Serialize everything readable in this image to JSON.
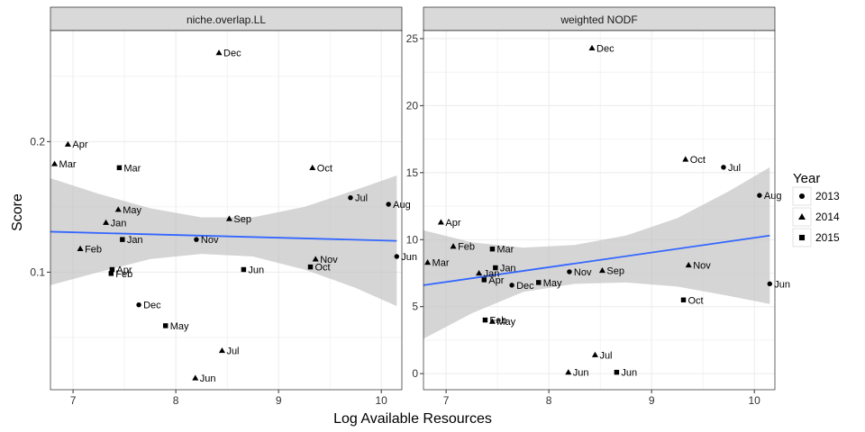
{
  "figure": {
    "xlabel": "Log Available Resources",
    "ylabel": "Score",
    "legend": {
      "title": "Year",
      "placement": "right",
      "items": [
        {
          "label": "2013",
          "shape": "circle"
        },
        {
          "label": "2014",
          "shape": "triangle"
        },
        {
          "label": "2015",
          "shape": "square"
        }
      ]
    },
    "colors": {
      "panel_bg": "#ffffff",
      "strip_bg": "#d9d9d9",
      "grid": "#ebebeb",
      "point": "#000000",
      "fit_line": "#3366ff",
      "ribbon": "#bfbfbf"
    }
  },
  "chart_data": [
    {
      "type": "scatter",
      "title": "niche.overlap.LL",
      "xlim": [
        6.78,
        10.2
      ],
      "ylim": [
        0.01,
        0.285
      ],
      "xticks": [
        7,
        8,
        9,
        10
      ],
      "yticks": [
        0.1,
        0.2
      ],
      "ytick_labels": [
        "0.1",
        "0.2"
      ],
      "points": [
        {
          "x": 8.42,
          "y": 0.268,
          "label": "Dec",
          "year": "2014"
        },
        {
          "x": 6.95,
          "y": 0.198,
          "label": "Apr",
          "year": "2014"
        },
        {
          "x": 6.82,
          "y": 0.183,
          "label": "Mar",
          "year": "2014"
        },
        {
          "x": 7.45,
          "y": 0.18,
          "label": "Mar",
          "year": "2015"
        },
        {
          "x": 9.33,
          "y": 0.18,
          "label": "Oct",
          "year": "2014"
        },
        {
          "x": 9.7,
          "y": 0.157,
          "label": "Jul",
          "year": "2013"
        },
        {
          "x": 10.07,
          "y": 0.152,
          "label": "Aug",
          "year": "2013"
        },
        {
          "x": 7.44,
          "y": 0.148,
          "label": "May",
          "year": "2014"
        },
        {
          "x": 8.52,
          "y": 0.141,
          "label": "Sep",
          "year": "2014"
        },
        {
          "x": 7.32,
          "y": 0.138,
          "label": "Jan",
          "year": "2014"
        },
        {
          "x": 7.48,
          "y": 0.125,
          "label": "Jan",
          "year": "2015"
        },
        {
          "x": 8.2,
          "y": 0.125,
          "label": "Nov",
          "year": "2013"
        },
        {
          "x": 7.07,
          "y": 0.118,
          "label": "Feb",
          "year": "2014"
        },
        {
          "x": 10.15,
          "y": 0.112,
          "label": "Jun",
          "year": "2013"
        },
        {
          "x": 9.36,
          "y": 0.11,
          "label": "Nov",
          "year": "2014"
        },
        {
          "x": 9.31,
          "y": 0.104,
          "label": "Oct",
          "year": "2015"
        },
        {
          "x": 8.66,
          "y": 0.102,
          "label": "Jun",
          "year": "2015"
        },
        {
          "x": 7.38,
          "y": 0.102,
          "label": "Apr",
          "year": "2015"
        },
        {
          "x": 7.37,
          "y": 0.099,
          "label": "Feb",
          "year": "2015"
        },
        {
          "x": 7.64,
          "y": 0.075,
          "label": "Dec",
          "year": "2013"
        },
        {
          "x": 7.9,
          "y": 0.059,
          "label": "May",
          "year": "2015"
        },
        {
          "x": 8.45,
          "y": 0.04,
          "label": "Jul",
          "year": "2014"
        },
        {
          "x": 8.19,
          "y": 0.019,
          "label": "Jun",
          "year": "2014"
        }
      ],
      "fit_line": {
        "x": [
          6.78,
          10.15
        ],
        "y": [
          0.131,
          0.124
        ]
      },
      "ribbon": {
        "x": [
          6.78,
          7.25,
          7.75,
          8.25,
          8.75,
          9.25,
          9.75,
          10.15
        ],
        "upper": [
          0.172,
          0.16,
          0.149,
          0.142,
          0.142,
          0.15,
          0.163,
          0.174
        ],
        "lower": [
          0.09,
          0.1,
          0.11,
          0.114,
          0.112,
          0.102,
          0.088,
          0.074
        ]
      }
    },
    {
      "type": "scatter",
      "title": "weighted NODF",
      "xlim": [
        6.78,
        10.2
      ],
      "ylim": [
        -1.2,
        25.6
      ],
      "xticks": [
        7,
        8,
        9,
        10
      ],
      "yticks": [
        0,
        5,
        10,
        15,
        20,
        25
      ],
      "ytick_labels": [
        "0",
        "5",
        "10",
        "15",
        "20",
        "25"
      ],
      "points": [
        {
          "x": 8.42,
          "y": 24.3,
          "label": "Dec",
          "year": "2014"
        },
        {
          "x": 9.33,
          "y": 16.0,
          "label": "Oct",
          "year": "2014"
        },
        {
          "x": 9.7,
          "y": 15.4,
          "label": "Jul",
          "year": "2013"
        },
        {
          "x": 10.05,
          "y": 13.3,
          "label": "Aug",
          "year": "2013"
        },
        {
          "x": 6.95,
          "y": 11.3,
          "label": "Apr",
          "year": "2014"
        },
        {
          "x": 7.07,
          "y": 9.5,
          "label": "Feb",
          "year": "2014"
        },
        {
          "x": 7.45,
          "y": 9.3,
          "label": "Mar",
          "year": "2015"
        },
        {
          "x": 6.82,
          "y": 8.3,
          "label": "Mar",
          "year": "2014"
        },
        {
          "x": 9.36,
          "y": 8.1,
          "label": "Nov",
          "year": "2014"
        },
        {
          "x": 7.48,
          "y": 7.9,
          "label": "Jan",
          "year": "2015"
        },
        {
          "x": 8.52,
          "y": 7.7,
          "label": "Sep",
          "year": "2014"
        },
        {
          "x": 8.2,
          "y": 7.6,
          "label": "Nov",
          "year": "2013"
        },
        {
          "x": 7.32,
          "y": 7.5,
          "label": "Jan",
          "year": "2014"
        },
        {
          "x": 7.37,
          "y": 7.0,
          "label": "Apr",
          "year": "2015"
        },
        {
          "x": 7.9,
          "y": 6.8,
          "label": "May",
          "year": "2015"
        },
        {
          "x": 10.15,
          "y": 6.7,
          "label": "Jun",
          "year": "2013"
        },
        {
          "x": 7.64,
          "y": 6.6,
          "label": "Dec",
          "year": "2013"
        },
        {
          "x": 9.31,
          "y": 5.5,
          "label": "Oct",
          "year": "2015"
        },
        {
          "x": 7.38,
          "y": 4.0,
          "label": "Feb",
          "year": "2015"
        },
        {
          "x": 7.45,
          "y": 3.9,
          "label": "May",
          "year": "2014"
        },
        {
          "x": 8.45,
          "y": 1.4,
          "label": "Jul",
          "year": "2014"
        },
        {
          "x": 8.19,
          "y": 0.1,
          "label": "Jun",
          "year": "2014"
        },
        {
          "x": 8.66,
          "y": 0.1,
          "label": "Jun",
          "year": "2015"
        }
      ],
      "fit_line": {
        "x": [
          6.78,
          10.15
        ],
        "y": [
          6.6,
          10.3
        ]
      },
      "ribbon": {
        "x": [
          6.78,
          7.25,
          7.75,
          8.25,
          8.75,
          9.25,
          9.75,
          10.15
        ],
        "upper": [
          10.7,
          9.8,
          9.4,
          9.6,
          10.3,
          11.6,
          13.6,
          15.4
        ],
        "lower": [
          2.6,
          4.5,
          6.1,
          6.7,
          6.8,
          6.5,
          5.8,
          5.2
        ]
      }
    }
  ]
}
